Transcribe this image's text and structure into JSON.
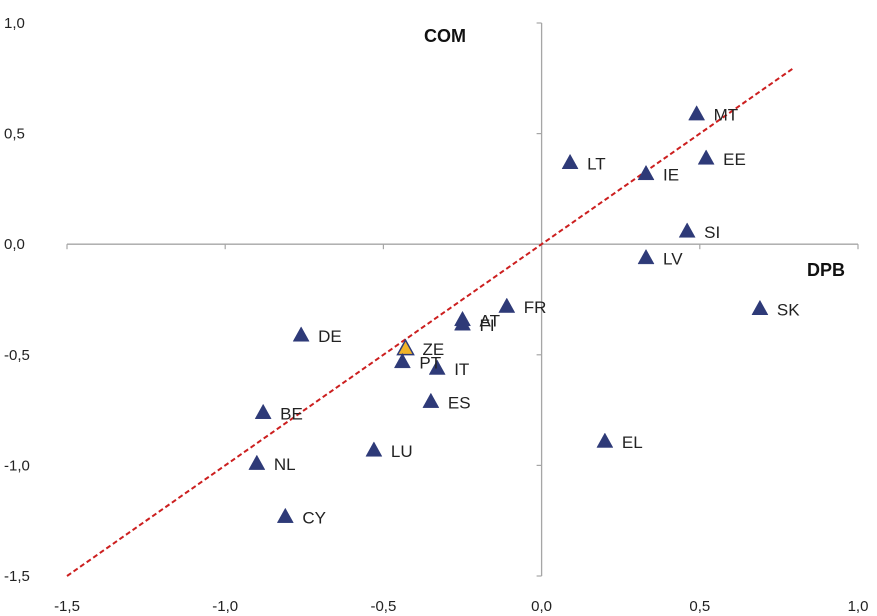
{
  "chart_data": {
    "type": "scatter",
    "xlabel": "DPB",
    "ylabel": "COM",
    "xlim": [
      -1.5,
      1.0
    ],
    "ylim": [
      -1.5,
      1.0
    ],
    "x_ticks": [
      {
        "value": -1.5,
        "label": "-1,5"
      },
      {
        "value": -1.0,
        "label": "-1,0"
      },
      {
        "value": -0.5,
        "label": "-0,5"
      },
      {
        "value": 0.0,
        "label": "0,0"
      },
      {
        "value": 0.5,
        "label": "0,5"
      },
      {
        "value": 1.0,
        "label": "1,0"
      }
    ],
    "y_ticks": [
      {
        "value": 1.0,
        "label": "1,0"
      },
      {
        "value": 0.5,
        "label": "0,5"
      },
      {
        "value": 0.0,
        "label": "0,0"
      },
      {
        "value": -0.5,
        "label": "-0,5"
      },
      {
        "value": -1.0,
        "label": "-1,0"
      },
      {
        "value": -1.5,
        "label": "-1,5"
      }
    ],
    "grid": false,
    "marker_color": "#2e3a78",
    "highlight_color": "#f0b429",
    "line_color": "#cc1f1f",
    "trend_line": {
      "x": [
        -1.5,
        0.8
      ],
      "y": [
        -1.5,
        0.8
      ]
    },
    "points": [
      {
        "label": "MT",
        "x": 0.49,
        "y": 0.59
      },
      {
        "label": "LT",
        "x": 0.09,
        "y": 0.37
      },
      {
        "label": "EE",
        "x": 0.52,
        "y": 0.39
      },
      {
        "label": "IE",
        "x": 0.33,
        "y": 0.32
      },
      {
        "label": "SI",
        "x": 0.46,
        "y": 0.06
      },
      {
        "label": "LV",
        "x": 0.33,
        "y": -0.06
      },
      {
        "label": "SK",
        "x": 0.69,
        "y": -0.29
      },
      {
        "label": "FR",
        "x": -0.11,
        "y": -0.28
      },
      {
        "label": "AT",
        "x": -0.25,
        "y": -0.34
      },
      {
        "label": "FI",
        "x": -0.25,
        "y": -0.36
      },
      {
        "label": "DE",
        "x": -0.76,
        "y": -0.41
      },
      {
        "label": "ZE",
        "x": -0.43,
        "y": -0.47,
        "highlight": true
      },
      {
        "label": "PT",
        "x": -0.44,
        "y": -0.53
      },
      {
        "label": "IT",
        "x": -0.33,
        "y": -0.56
      },
      {
        "label": "ES",
        "x": -0.35,
        "y": -0.71
      },
      {
        "label": "BE",
        "x": -0.88,
        "y": -0.76
      },
      {
        "label": "EL",
        "x": 0.2,
        "y": -0.89
      },
      {
        "label": "LU",
        "x": -0.53,
        "y": -0.93
      },
      {
        "label": "NL",
        "x": -0.9,
        "y": -0.99
      },
      {
        "label": "CY",
        "x": -0.81,
        "y": -1.23
      }
    ]
  }
}
